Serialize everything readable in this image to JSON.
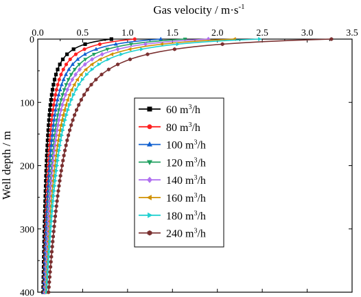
{
  "chart_data": {
    "type": "line",
    "xlabel": "Gas velocity / m·s",
    "xlabel_superscript": "-1",
    "ylabel": "Well depth / m",
    "xlim": [
      0,
      3.5
    ],
    "ylim": [
      0,
      400
    ],
    "y_inverted": true,
    "x_axis_position": "top",
    "x_ticks": [
      0.0,
      0.5,
      1.0,
      1.5,
      2.0,
      2.5,
      3.0,
      3.5
    ],
    "x_tick_labels": [
      "0.0",
      "0.5",
      "1.0",
      "1.5",
      "2.0",
      "2.5",
      "3.0",
      "3.5"
    ],
    "y_ticks": [
      0,
      100,
      200,
      300,
      400
    ],
    "y_tick_labels": [
      "0",
      "100",
      "200",
      "300",
      "400"
    ],
    "grid": false,
    "legend_position": "center",
    "series": [
      {
        "name": "60 m³/h",
        "label": "60 m",
        "label_sup": "3",
        "label_suffix": "/h",
        "color": "#000000",
        "marker": "square",
        "surface_velocity": 0.82,
        "bottom_velocity": 0.06
      },
      {
        "name": "80 m³/h",
        "label": "80 m",
        "label_sup": "3",
        "label_suffix": "/h",
        "color": "#ff2020",
        "marker": "circle",
        "surface_velocity": 1.08,
        "bottom_velocity": 0.07
      },
      {
        "name": "100 m³/h",
        "label": "100 m",
        "label_sup": "3",
        "label_suffix": "/h",
        "color": "#1060d0",
        "marker": "triangle-up",
        "surface_velocity": 1.37,
        "bottom_velocity": 0.07
      },
      {
        "name": "120 m³/h",
        "label": "120 m",
        "label_sup": "3",
        "label_suffix": "/h",
        "color": "#20a060",
        "marker": "triangle-down",
        "surface_velocity": 1.64,
        "bottom_velocity": 0.08
      },
      {
        "name": "140 m³/h",
        "label": "140 m",
        "label_sup": "3",
        "label_suffix": "/h",
        "color": "#b070f0",
        "marker": "diamond",
        "surface_velocity": 1.9,
        "bottom_velocity": 0.08
      },
      {
        "name": "160 m³/h",
        "label": "160 m",
        "label_sup": "3",
        "label_suffix": "/h",
        "color": "#d09000",
        "marker": "triangle-left",
        "surface_velocity": 2.19,
        "bottom_velocity": 0.09
      },
      {
        "name": "180 m³/h",
        "label": "180 m",
        "label_sup": "3",
        "label_suffix": "/h",
        "color": "#20d0d0",
        "marker": "triangle-right",
        "surface_velocity": 2.47,
        "bottom_velocity": 0.1
      },
      {
        "name": "240 m³/h",
        "label": "240 m",
        "label_sup": "3",
        "label_suffix": "/h",
        "color": "#7a3030",
        "marker": "hexagon",
        "surface_velocity": 3.27,
        "bottom_velocity": 0.12
      }
    ]
  }
}
